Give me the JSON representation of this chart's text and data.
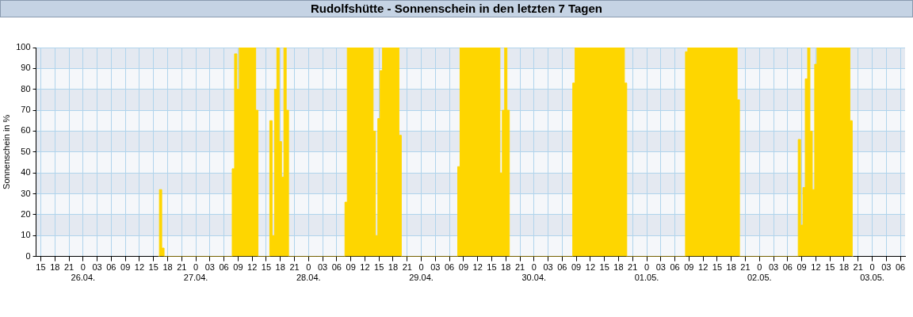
{
  "chart_data": {
    "type": "area",
    "title": "Rudolfshütte - Sonnenschein in den letzten 7 Tagen",
    "ylabel": "Sonnenschein in %",
    "x": [
      "--04-26T16:00",
      "--04-26T16:30",
      "--04-26T17:00",
      "--04-26T17:30",
      "--04-27T07:30",
      "--04-27T08:00",
      "--04-27T08:30",
      "--04-27T09:00",
      "--04-27T09:30",
      "--04-27T10:00",
      "--04-27T10:30",
      "--04-27T11:00",
      "--04-27T11:30",
      "--04-27T12:00",
      "--04-27T12:30",
      "--04-27T13:00",
      "--04-27T13:30",
      "--04-27T15:30",
      "--04-27T16:00",
      "--04-27T16:30",
      "--04-27T17:00",
      "--04-27T17:30",
      "--04-27T18:00",
      "--04-27T18:30",
      "--04-27T19:00",
      "--04-27T19:30",
      "--04-27T20:00",
      "--04-28T07:30",
      "--04-28T08:00",
      "--04-28T08:30",
      "--04-28T09:00",
      "--04-28T09:30",
      "--04-28T10:00",
      "--04-28T10:30",
      "--04-28T11:00",
      "--04-28T11:30",
      "--04-28T12:00",
      "--04-28T12:30",
      "--04-28T13:00",
      "--04-28T13:30",
      "--04-28T14:00",
      "--04-28T14:30",
      "--04-28T15:00",
      "--04-28T15:30",
      "--04-28T16:00",
      "--04-28T16:30",
      "--04-28T17:00",
      "--04-28T17:30",
      "--04-28T18:00",
      "--04-28T18:30",
      "--04-28T19:00",
      "--04-28T19:30",
      "--04-28T20:00",
      "--04-29T07:30",
      "--04-29T08:00",
      "--04-29T08:30",
      "--04-29T09:00",
      "--04-29T09:30",
      "--04-29T10:00",
      "--04-29T10:30",
      "--04-29T11:00",
      "--04-29T11:30",
      "--04-29T12:00",
      "--04-29T12:30",
      "--04-29T13:00",
      "--04-29T13:30",
      "--04-29T14:00",
      "--04-29T14:30",
      "--04-29T15:00",
      "--04-29T15:30",
      "--04-29T16:00",
      "--04-29T16:30",
      "--04-29T17:00",
      "--04-29T17:30",
      "--04-29T18:00",
      "--04-29T18:30",
      "--04-29T19:00",
      "--04-30T08:00",
      "--04-30T08:30",
      "--04-30T09:00",
      "--04-30T09:30",
      "--04-30T10:00",
      "--04-30T10:30",
      "--04-30T11:00",
      "--04-30T11:30",
      "--04-30T12:00",
      "--04-30T12:30",
      "--04-30T13:00",
      "--04-30T13:30",
      "--04-30T14:00",
      "--04-30T14:30",
      "--04-30T15:00",
      "--04-30T15:30",
      "--04-30T16:00",
      "--04-30T16:30",
      "--04-30T17:00",
      "--04-30T17:30",
      "--04-30T18:00",
      "--04-30T18:30",
      "--04-30T19:00",
      "--04-30T19:30",
      "--04-30T20:00",
      "--05-01T08:00",
      "--05-01T08:30",
      "--05-01T09:00",
      "--05-01T09:30",
      "--05-01T10:00",
      "--05-01T10:30",
      "--05-01T11:00",
      "--05-01T11:30",
      "--05-01T12:00",
      "--05-01T12:30",
      "--05-01T13:00",
      "--05-01T13:30",
      "--05-01T14:00",
      "--05-01T14:30",
      "--05-01T15:00",
      "--05-01T15:30",
      "--05-01T16:00",
      "--05-01T16:30",
      "--05-01T17:00",
      "--05-01T17:30",
      "--05-01T18:00",
      "--05-01T18:30",
      "--05-01T19:00",
      "--05-01T19:30",
      "--05-01T20:00",
      "--05-02T08:00",
      "--05-02T08:30",
      "--05-02T09:00",
      "--05-02T09:30",
      "--05-02T10:00",
      "--05-02T10:30",
      "--05-02T11:00",
      "--05-02T11:30",
      "--05-02T12:00",
      "--05-02T12:30",
      "--05-02T13:00",
      "--05-02T13:30",
      "--05-02T14:00",
      "--05-02T14:30",
      "--05-02T15:00",
      "--05-02T15:30",
      "--05-02T16:00",
      "--05-02T16:30",
      "--05-02T17:00",
      "--05-02T17:30",
      "--05-02T18:00",
      "--05-02T18:30",
      "--05-02T19:00",
      "--05-02T19:30",
      "--05-02T20:00"
    ],
    "values": [
      0,
      32,
      4,
      0,
      0,
      42,
      97,
      80,
      100,
      100,
      100,
      100,
      100,
      100,
      100,
      70,
      0,
      0,
      65,
      10,
      80,
      100,
      55,
      38,
      100,
      70,
      0,
      0,
      26,
      100,
      100,
      100,
      100,
      100,
      100,
      100,
      100,
      100,
      100,
      100,
      60,
      10,
      66,
      89,
      100,
      100,
      100,
      100,
      100,
      100,
      100,
      58,
      0,
      0,
      43,
      100,
      100,
      100,
      100,
      100,
      100,
      100,
      100,
      100,
      100,
      100,
      100,
      100,
      100,
      100,
      100,
      100,
      40,
      70,
      100,
      70,
      0,
      0,
      83,
      100,
      100,
      100,
      100,
      100,
      100,
      100,
      100,
      100,
      100,
      100,
      100,
      100,
      100,
      100,
      100,
      100,
      100,
      100,
      100,
      100,
      83,
      0,
      0,
      98,
      100,
      100,
      100,
      100,
      100,
      100,
      100,
      100,
      100,
      100,
      100,
      100,
      100,
      100,
      100,
      100,
      100,
      100,
      100,
      100,
      100,
      75,
      0,
      0,
      56,
      15,
      33,
      85,
      100,
      60,
      32,
      92,
      100,
      100,
      100,
      100,
      100,
      100,
      100,
      100,
      100,
      100,
      100,
      100,
      100,
      100,
      65,
      0
    ],
    "color": "#fed600",
    "marker": "none",
    "xlim": [
      "--04-25T14:00",
      "--05-03T07:00"
    ],
    "xticks": [
      {
        "value": "--04-25T15:00",
        "label": "15"
      },
      {
        "value": "--04-25T18:00",
        "label": "18"
      },
      {
        "value": "--04-25T21:00",
        "label": "21"
      },
      {
        "value": "--04-26T00:00",
        "label": "0\n26.04."
      },
      {
        "value": "--04-26T03:00",
        "label": "03"
      },
      {
        "value": "--04-26T06:00",
        "label": "06"
      },
      {
        "value": "--04-26T09:00",
        "label": "09"
      },
      {
        "value": "--04-26T12:00",
        "label": "12"
      },
      {
        "value": "--04-26T15:00",
        "label": "15"
      },
      {
        "value": "--04-26T18:00",
        "label": "18"
      },
      {
        "value": "--04-26T21:00",
        "label": "21"
      },
      {
        "value": "--04-27T00:00",
        "label": "0\n27.04."
      },
      {
        "value": "--04-27T03:00",
        "label": "03"
      },
      {
        "value": "--04-27T06:00",
        "label": "06"
      },
      {
        "value": "--04-27T09:00",
        "label": "09"
      },
      {
        "value": "--04-27T12:00",
        "label": "12"
      },
      {
        "value": "--04-27T15:00",
        "label": "15"
      },
      {
        "value": "--04-27T18:00",
        "label": "18"
      },
      {
        "value": "--04-27T21:00",
        "label": "21"
      },
      {
        "value": "--04-28T00:00",
        "label": "0\n28.04."
      },
      {
        "value": "--04-28T03:00",
        "label": "03"
      },
      {
        "value": "--04-28T06:00",
        "label": "06"
      },
      {
        "value": "--04-28T09:00",
        "label": "09"
      },
      {
        "value": "--04-28T12:00",
        "label": "12"
      },
      {
        "value": "--04-28T15:00",
        "label": "15"
      },
      {
        "value": "--04-28T18:00",
        "label": "18"
      },
      {
        "value": "--04-28T21:00",
        "label": "21"
      },
      {
        "value": "--04-29T00:00",
        "label": "0\n29.04."
      },
      {
        "value": "--04-29T03:00",
        "label": "03"
      },
      {
        "value": "--04-29T06:00",
        "label": "06"
      },
      {
        "value": "--04-29T09:00",
        "label": "09"
      },
      {
        "value": "--04-29T12:00",
        "label": "12"
      },
      {
        "value": "--04-29T15:00",
        "label": "15"
      },
      {
        "value": "--04-29T18:00",
        "label": "18"
      },
      {
        "value": "--04-29T21:00",
        "label": "21"
      },
      {
        "value": "--04-30T00:00",
        "label": "0\n30.04."
      },
      {
        "value": "--04-30T03:00",
        "label": "03"
      },
      {
        "value": "--04-30T06:00",
        "label": "06"
      },
      {
        "value": "--04-30T09:00",
        "label": "09"
      },
      {
        "value": "--04-30T12:00",
        "label": "12"
      },
      {
        "value": "--04-30T15:00",
        "label": "15"
      },
      {
        "value": "--04-30T18:00",
        "label": "18"
      },
      {
        "value": "--04-30T21:00",
        "label": "21"
      },
      {
        "value": "--05-01T00:00",
        "label": "0\n01.05."
      },
      {
        "value": "--05-01T03:00",
        "label": "03"
      },
      {
        "value": "--05-01T06:00",
        "label": "06"
      },
      {
        "value": "--05-01T09:00",
        "label": "09"
      },
      {
        "value": "--05-01T12:00",
        "label": "12"
      },
      {
        "value": "--05-01T15:00",
        "label": "15"
      },
      {
        "value": "--05-01T18:00",
        "label": "18"
      },
      {
        "value": "--05-01T21:00",
        "label": "21"
      },
      {
        "value": "--05-02T00:00",
        "label": "0\n02.05."
      },
      {
        "value": "--05-02T03:00",
        "label": "03"
      },
      {
        "value": "--05-02T06:00",
        "label": "06"
      },
      {
        "value": "--05-02T09:00",
        "label": "09"
      },
      {
        "value": "--05-02T12:00",
        "label": "12"
      },
      {
        "value": "--05-02T15:00",
        "label": "15"
      },
      {
        "value": "--05-02T18:00",
        "label": "18"
      },
      {
        "value": "--05-02T21:00",
        "label": "21"
      },
      {
        "value": "--05-03T00:00",
        "label": "0\n03.05."
      },
      {
        "value": "--05-03T03:00",
        "label": "03"
      },
      {
        "value": "--05-03T06:00",
        "label": "06"
      }
    ],
    "ylim": [
      0,
      100
    ],
    "yticks": [
      0,
      10,
      20,
      30,
      40,
      50,
      60,
      70,
      80,
      90,
      100
    ],
    "grid": true
  }
}
